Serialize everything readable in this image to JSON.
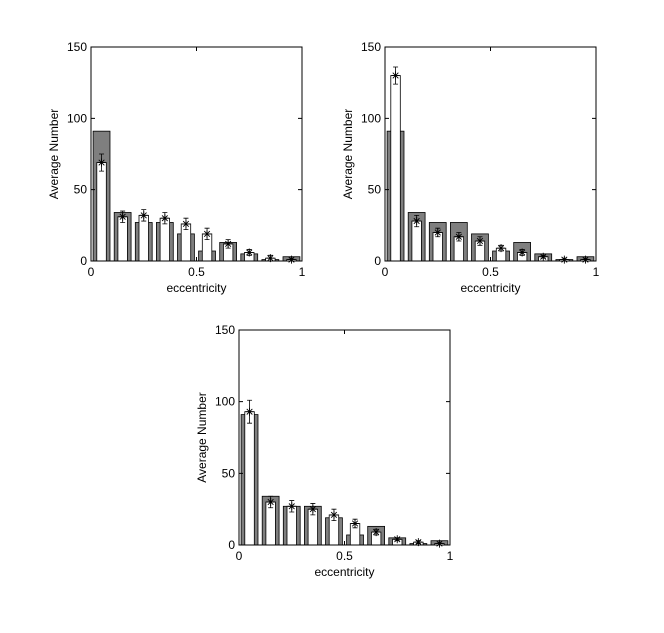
{
  "chart_data": [
    {
      "type": "histogram",
      "xlabel": "eccentricity",
      "ylabel": "Average Number",
      "bins": [
        0,
        0.1,
        0.2,
        0.3,
        0.4,
        0.5,
        0.6,
        0.7,
        0.8,
        0.9,
        1
      ],
      "xlim": [
        0,
        1
      ],
      "xticks": [
        0,
        0.5,
        1
      ],
      "ylim": [
        0,
        150
      ],
      "yticks": [
        0,
        50,
        100,
        150
      ],
      "series": [
        {
          "color": "#7f7f7f",
          "values": [
            91,
            34,
            27,
            27,
            19,
            7,
            13,
            5,
            1,
            3
          ]
        },
        {
          "color": "#ffffff",
          "values": [
            69,
            31,
            32,
            30,
            26,
            19,
            12,
            6,
            2,
            1
          ],
          "errors": [
            6,
            4,
            4,
            4,
            4,
            4,
            3,
            2,
            2,
            1
          ]
        }
      ]
    },
    {
      "type": "histogram",
      "xlabel": "eccentricity",
      "ylabel": "Average Number",
      "bins": [
        0,
        0.1,
        0.2,
        0.3,
        0.4,
        0.5,
        0.6,
        0.7,
        0.8,
        0.9,
        1
      ],
      "xlim": [
        0,
        1
      ],
      "xticks": [
        0,
        0.5,
        1
      ],
      "ylim": [
        0,
        150
      ],
      "yticks": [
        0,
        50,
        100,
        150
      ],
      "series": [
        {
          "color": "#7f7f7f",
          "values": [
            91,
            34,
            27,
            27,
            19,
            7,
            13,
            5,
            1,
            3
          ]
        },
        {
          "color": "#ffffff",
          "values": [
            130,
            28,
            20,
            17,
            14,
            9,
            6,
            3,
            1,
            1
          ],
          "errors": [
            6,
            4,
            3,
            3,
            3,
            2,
            2,
            1,
            1,
            1
          ]
        }
      ]
    },
    {
      "type": "histogram",
      "xlabel": "eccentricity",
      "ylabel": "Average Number",
      "bins": [
        0,
        0.1,
        0.2,
        0.3,
        0.4,
        0.5,
        0.6,
        0.7,
        0.8,
        0.9,
        1
      ],
      "xlim": [
        0,
        1
      ],
      "xticks": [
        0,
        0.5,
        1
      ],
      "ylim": [
        0,
        150
      ],
      "yticks": [
        0,
        50,
        100,
        150
      ],
      "series": [
        {
          "color": "#7f7f7f",
          "values": [
            91,
            34,
            27,
            27,
            19,
            7,
            13,
            5,
            1,
            3
          ]
        },
        {
          "color": "#ffffff",
          "values": [
            93,
            30,
            27,
            25,
            21,
            15,
            9,
            4,
            2,
            1
          ],
          "errors": [
            8,
            4,
            4,
            4,
            4,
            3,
            2,
            1,
            1,
            1
          ]
        }
      ]
    }
  ]
}
